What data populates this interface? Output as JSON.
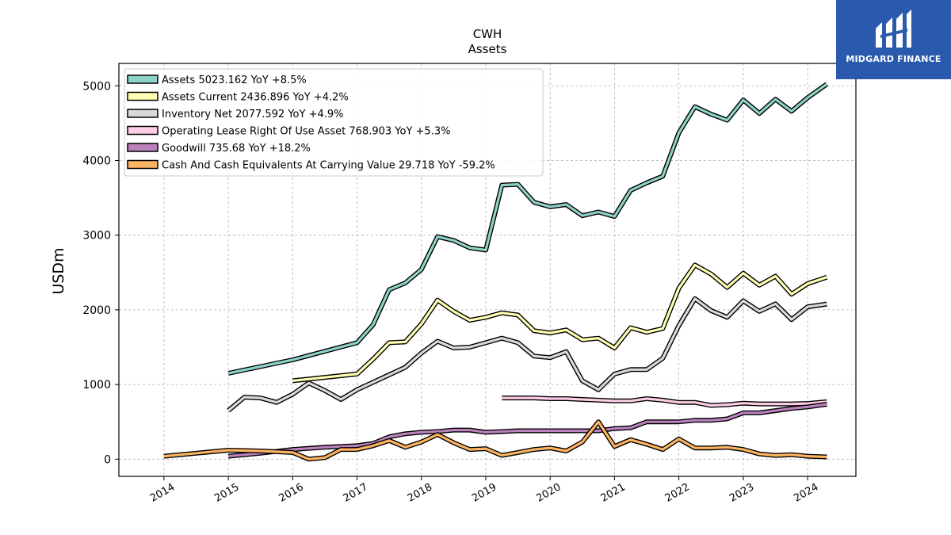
{
  "brand": {
    "name": "MIDGARD FINANCE",
    "logo_icon": "midgard-logo-icon",
    "color": "#2a5aad"
  },
  "chart_data": {
    "type": "line",
    "title": "CWH",
    "subtitle": "Assets",
    "ylabel": "USDm",
    "xlabel": "",
    "ylim": [
      -230,
      5300
    ],
    "xlim": [
      2013.3,
      2024.75
    ],
    "grid": true,
    "legend_position": "top-left",
    "yticks": [
      0,
      1000,
      2000,
      3000,
      4000,
      5000
    ],
    "xticks": [
      2014,
      2015,
      2016,
      2017,
      2018,
      2019,
      2020,
      2021,
      2022,
      2023,
      2024
    ],
    "series": [
      {
        "name": "Assets  5023.162 YoY +8.5%",
        "color": "#8dd3c7",
        "x": [
          2015.0,
          2016.0,
          2017.0,
          2017.25,
          2017.5,
          2017.75,
          2018.0,
          2018.25,
          2018.5,
          2018.75,
          2019.0,
          2019.25,
          2019.5,
          2019.75,
          2020.0,
          2020.25,
          2020.5,
          2020.75,
          2021.0,
          2021.25,
          2021.5,
          2021.75,
          2022.0,
          2022.25,
          2022.5,
          2022.75,
          2023.0,
          2023.25,
          2023.5,
          2023.75,
          2024.0,
          2024.3
        ],
        "values": [
          1150,
          1330,
          1560,
          1800,
          2270,
          2360,
          2540,
          2980,
          2930,
          2830,
          2800,
          3670,
          3680,
          3440,
          3380,
          3410,
          3260,
          3310,
          3250,
          3600,
          3700,
          3790,
          4370,
          4720,
          4620,
          4540,
          4810,
          4630,
          4820,
          4660,
          4840,
          5023
        ]
      },
      {
        "name": "Assets Current  2436.896 YoY +4.2%",
        "color": "#ffffb3",
        "x": [
          2016.0,
          2017.0,
          2017.25,
          2017.5,
          2017.75,
          2018.0,
          2018.25,
          2018.5,
          2018.75,
          2019.0,
          2019.25,
          2019.5,
          2019.75,
          2020.0,
          2020.25,
          2020.5,
          2020.75,
          2021.0,
          2021.25,
          2021.5,
          2021.75,
          2022.0,
          2022.25,
          2022.5,
          2022.75,
          2023.0,
          2023.25,
          2023.5,
          2023.75,
          2024.0,
          2024.3
        ],
        "values": [
          1050,
          1140,
          1340,
          1560,
          1570,
          1810,
          2130,
          1980,
          1860,
          1900,
          1960,
          1930,
          1720,
          1690,
          1730,
          1600,
          1620,
          1490,
          1760,
          1700,
          1750,
          2290,
          2600,
          2480,
          2300,
          2490,
          2330,
          2450,
          2210,
          2350,
          2437
        ]
      },
      {
        "name": "Inventory Net  2077.592 YoY +4.9%",
        "color": "#d9d9d9",
        "x": [
          2015.0,
          2015.25,
          2015.5,
          2015.75,
          2016.0,
          2016.25,
          2016.5,
          2016.75,
          2017.0,
          2017.25,
          2017.5,
          2017.75,
          2018.0,
          2018.25,
          2018.5,
          2018.75,
          2019.0,
          2019.25,
          2019.5,
          2019.75,
          2020.0,
          2020.25,
          2020.5,
          2020.75,
          2021.0,
          2021.25,
          2021.5,
          2021.75,
          2022.0,
          2022.25,
          2022.5,
          2022.75,
          2023.0,
          2023.25,
          2023.5,
          2023.75,
          2024.0,
          2024.3
        ],
        "values": [
          650,
          830,
          820,
          760,
          870,
          1020,
          920,
          800,
          930,
          1030,
          1130,
          1230,
          1420,
          1580,
          1490,
          1500,
          1560,
          1620,
          1560,
          1380,
          1360,
          1440,
          1050,
          930,
          1140,
          1200,
          1200,
          1350,
          1790,
          2150,
          1990,
          1900,
          2120,
          1980,
          2080,
          1870,
          2040,
          2078
        ]
      },
      {
        "name": "Operating Lease Right Of Use Asset  768.903 YoY +5.3%",
        "color": "#fccde5",
        "x": [
          2019.25,
          2019.5,
          2019.75,
          2020.0,
          2020.25,
          2020.5,
          2020.75,
          2021.0,
          2021.25,
          2021.5,
          2021.75,
          2022.0,
          2022.25,
          2022.5,
          2022.75,
          2023.0,
          2023.25,
          2023.5,
          2023.75,
          2024.0,
          2024.3
        ],
        "values": [
          820,
          820,
          820,
          810,
          810,
          800,
          790,
          780,
          780,
          810,
          790,
          760,
          760,
          720,
          730,
          750,
          740,
          740,
          740,
          745,
          769
        ]
      },
      {
        "name": "Goodwill  735.68 YoY +18.2%",
        "color": "#bc80bd",
        "x": [
          2015.0,
          2015.5,
          2016.0,
          2016.5,
          2017.0,
          2017.25,
          2017.5,
          2017.75,
          2018.0,
          2018.25,
          2018.5,
          2018.75,
          2019.0,
          2019.5,
          2020.0,
          2020.5,
          2020.75,
          2021.0,
          2021.25,
          2021.5,
          2021.75,
          2022.0,
          2022.25,
          2022.5,
          2022.75,
          2023.0,
          2023.25,
          2023.5,
          2023.75,
          2024.0,
          2024.3
        ],
        "values": [
          40,
          80,
          130,
          160,
          180,
          210,
          300,
          340,
          360,
          370,
          390,
          390,
          360,
          380,
          380,
          380,
          380,
          410,
          420,
          500,
          500,
          500,
          520,
          520,
          540,
          620,
          620,
          650,
          680,
          700,
          736
        ]
      },
      {
        "name": "Cash And Cash Equivalents At Carrying Value  29.718 YoY -59.2%",
        "color": "#fdb462",
        "x": [
          2014.0,
          2014.5,
          2015.0,
          2015.5,
          2016.0,
          2016.25,
          2016.5,
          2016.75,
          2017.0,
          2017.25,
          2017.5,
          2017.75,
          2018.0,
          2018.25,
          2018.5,
          2018.75,
          2019.0,
          2019.25,
          2019.5,
          2019.75,
          2020.0,
          2020.25,
          2020.5,
          2020.75,
          2021.0,
          2021.25,
          2021.5,
          2021.75,
          2022.0,
          2022.25,
          2022.5,
          2022.75,
          2023.0,
          2023.25,
          2023.5,
          2023.75,
          2024.0,
          2024.3
        ],
        "values": [
          40,
          80,
          120,
          110,
          90,
          0,
          20,
          130,
          130,
          180,
          250,
          160,
          230,
          330,
          220,
          130,
          140,
          50,
          90,
          130,
          150,
          110,
          230,
          500,
          170,
          260,
          200,
          130,
          270,
          150,
          150,
          160,
          130,
          70,
          50,
          60,
          40,
          30
        ]
      }
    ]
  }
}
